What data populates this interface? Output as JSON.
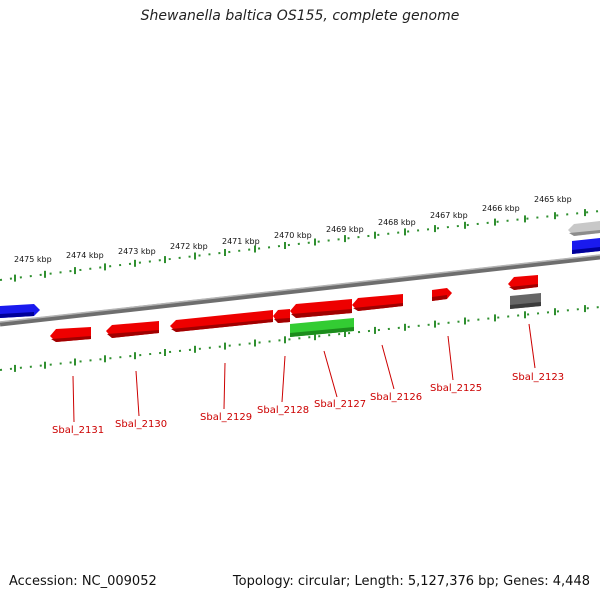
{
  "title": "Shewanella baltica OS155, complete genome",
  "footer": {
    "accession": "Accession: NC_009052",
    "summary": "Topology: circular; Length: 5,127,376 bp; Genes: 4,448"
  },
  "colors": {
    "background": "#ffffff",
    "backbone": "#8a8a8a",
    "ruler": "#2f8f2f",
    "gene_red": "#ee0000",
    "gene_green": "#33cc33",
    "gene_blue": "#1a1aee",
    "gene_gray": "#666666",
    "gene_lightgray": "#c8c8c8",
    "label": "#cc0000"
  },
  "top_scale_labels": [
    "2475 kbp",
    "2474 kbp",
    "2473 kbp",
    "2472 kbp",
    "2471 kbp",
    "2470 kbp",
    "2469 kbp",
    "2468 kbp",
    "2467 kbp",
    "2466 kbp",
    "2465 kbp"
  ],
  "gene_labels": [
    "Sbal_2131",
    "Sbal_2130",
    "Sbal_2129",
    "Sbal_2128",
    "Sbal_2127",
    "Sbal_2126",
    "Sbal_2125",
    "Sbal_2123"
  ]
}
